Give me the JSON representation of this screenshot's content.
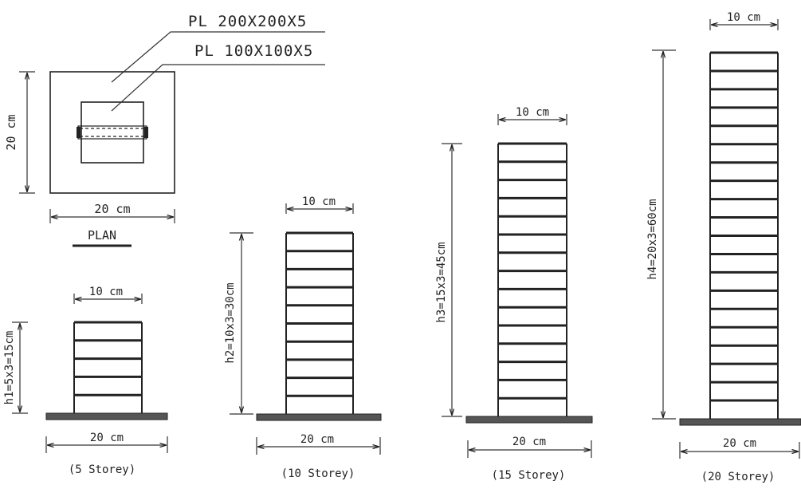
{
  "plan": {
    "outer_plate": "PL 200X200X5",
    "inner_plate": "PL 100X100X5",
    "height_dim": "20 cm",
    "width_dim": "20 cm",
    "title": "PLAN"
  },
  "models": [
    {
      "id": "m5",
      "storeys": 5,
      "top_dim": "10 cm",
      "height_dim": "h1=5x3=15cm",
      "base_dim": "20 cm",
      "caption": "(5 Storey)"
    },
    {
      "id": "m10",
      "storeys": 10,
      "top_dim": "10 cm",
      "height_dim": "h2=10x3=30cm",
      "base_dim": "20 cm",
      "caption": "(10 Storey)"
    },
    {
      "id": "m15",
      "storeys": 15,
      "top_dim": "10 cm",
      "height_dim": "h3=15x3=45cm",
      "base_dim": "20 cm",
      "caption": "(15 Storey)"
    },
    {
      "id": "m20",
      "storeys": 20,
      "top_dim": "10 cm",
      "height_dim": "h4=20x3=60cm",
      "base_dim": "20 cm",
      "caption": "(20 Storey)"
    }
  ]
}
